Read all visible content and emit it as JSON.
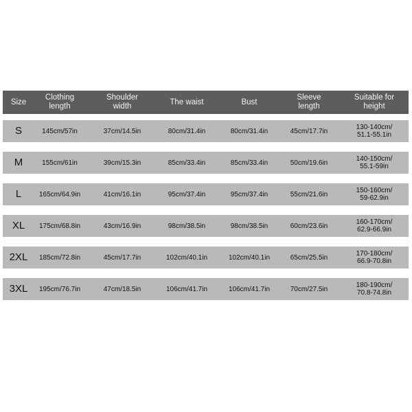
{
  "table": {
    "header": [
      "Size",
      "Clothing\nlength",
      "Shoulder\nwidth",
      "The waist",
      "Bust",
      "Sleeve\nlength",
      "Suitable for\nheight"
    ],
    "rows": [
      [
        "S",
        "145cm/57in",
        "37cm/14.5in",
        "80cm/31.4in",
        "80cm/31.4in",
        "45cm/17.7in",
        "130-140cm/\n51.1-55.1in"
      ],
      [
        "M",
        "155cm/61in",
        "39cm/15.3in",
        "85cm/33.4in",
        "85cm/33.4in",
        "50cm/19.6in",
        "140-150cm/\n55.1-59in"
      ],
      [
        "L",
        "165cm/64.9in",
        "41cm/16.1in",
        "95cm/37.4in",
        "95cm/37.4in",
        "55cm/21.6in",
        "150-160cm/\n59-62.9in"
      ],
      [
        "XL",
        "175cm/68.8in",
        "43cm/16.9in",
        "98cm/38.5in",
        "98cm/38.5in",
        "60cm/23.6in",
        "160-170cm/\n62.9-66.9in"
      ],
      [
        "2XL",
        "185cm/72.8in",
        "45cm/17.7in",
        "102cm/40.1in",
        "102cm/40.1in",
        "65cm/25.5in",
        "170-180cm/\n66.9-70.8in"
      ],
      [
        "3XL",
        "195cm/76.7in",
        "47cm/18.5in",
        "106cm/41.7in",
        "106cm/41.7in",
        "70cm/27.5in",
        "180-190cm/\n70.8-74.8in"
      ]
    ]
  }
}
